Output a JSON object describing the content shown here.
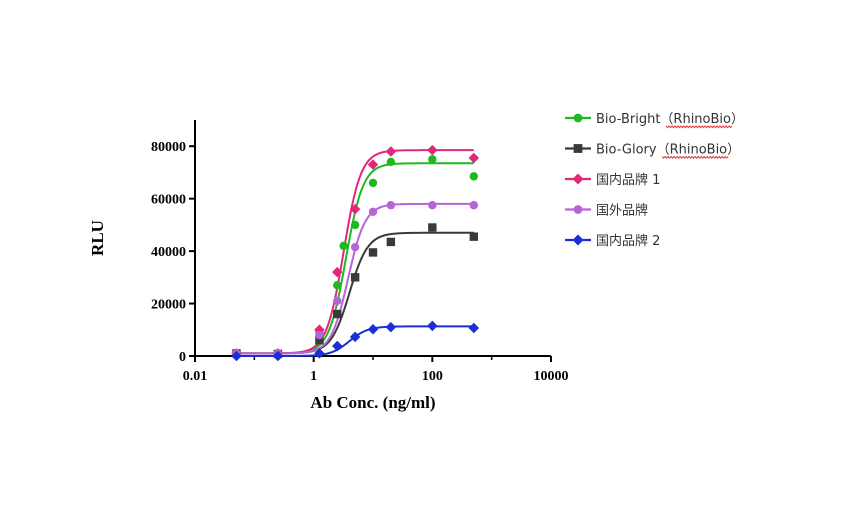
{
  "chart_data": {
    "type": "scatter",
    "xscale": "log",
    "xlim": [
      0.01,
      10000
    ],
    "ylim": [
      0,
      90000
    ],
    "xticks": [
      0.01,
      1,
      100,
      10000
    ],
    "xtick_labels": [
      "0.01",
      "1",
      "100",
      "10000"
    ],
    "yticks": [
      0,
      20000,
      40000,
      60000,
      80000
    ],
    "ytick_labels": [
      "0",
      "20000",
      "40000",
      "60000",
      "80000"
    ],
    "xlabel": "Ab Conc. (ng/ml)",
    "ylabel": "RLU",
    "legend_position": "right",
    "series": [
      {
        "name": "Bio-Bright",
        "name_suffix": "（RhinoBio）",
        "color": "#1fb81f",
        "marker": "circle",
        "x": [
          0.05,
          0.25,
          1.25,
          2.5,
          3.2,
          5.0,
          10.0,
          20.0,
          100.0,
          500.0
        ],
        "y": [
          1000,
          1000,
          9000,
          27000,
          42000,
          50000,
          66000,
          74000,
          75000,
          68500
        ],
        "fit": {
          "bottom": 1000,
          "top": 73500,
          "ec50": 3.5,
          "hill": 3.0
        }
      },
      {
        "name": "Bio-Glory",
        "name_suffix": "（RhinoBio）",
        "color": "#3a3a3a",
        "marker": "square",
        "x": [
          0.05,
          0.25,
          1.25,
          2.5,
          5.0,
          10.0,
          20.0,
          100.0,
          500.0
        ],
        "y": [
          1000,
          800,
          6000,
          16000,
          30000,
          39500,
          43500,
          49000,
          45500
        ],
        "fit": {
          "bottom": 1000,
          "top": 47000,
          "ec50": 4.0,
          "hill": 2.8
        }
      },
      {
        "name": "国内品牌 1",
        "name_suffix": "",
        "color": "#e0287a",
        "marker": "diamond",
        "x": [
          0.05,
          0.25,
          1.25,
          2.5,
          5.0,
          10.0,
          20.0,
          100.0,
          500.0
        ],
        "y": [
          1000,
          1000,
          10000,
          32000,
          56000,
          73000,
          78000,
          78500,
          75500
        ],
        "fit": {
          "bottom": 1000,
          "top": 78500,
          "ec50": 3.2,
          "hill": 3.0
        }
      },
      {
        "name": "国外品牌",
        "name_suffix": "",
        "color": "#b565d6",
        "marker": "circle",
        "x": [
          0.05,
          0.25,
          1.25,
          2.5,
          5.0,
          10.0,
          20.0,
          100.0,
          500.0
        ],
        "y": [
          1000,
          1000,
          8000,
          21000,
          41500,
          55000,
          57500,
          57500,
          57500
        ],
        "fit": {
          "bottom": 1000,
          "top": 58000,
          "ec50": 3.8,
          "hill": 3.0
        }
      },
      {
        "name": "国内品牌 2",
        "name_suffix": "",
        "color": "#1a2fd6",
        "marker": "diamond",
        "x": [
          0.05,
          0.25,
          1.25,
          2.5,
          5.0,
          10.0,
          20.0,
          100.0,
          500.0
        ],
        "y": [
          0,
          0,
          1000,
          3800,
          7300,
          10200,
          11000,
          11500,
          10700
        ],
        "fit": {
          "bottom": 0,
          "top": 11300,
          "ec50": 4.0,
          "hill": 2.8
        }
      }
    ]
  }
}
